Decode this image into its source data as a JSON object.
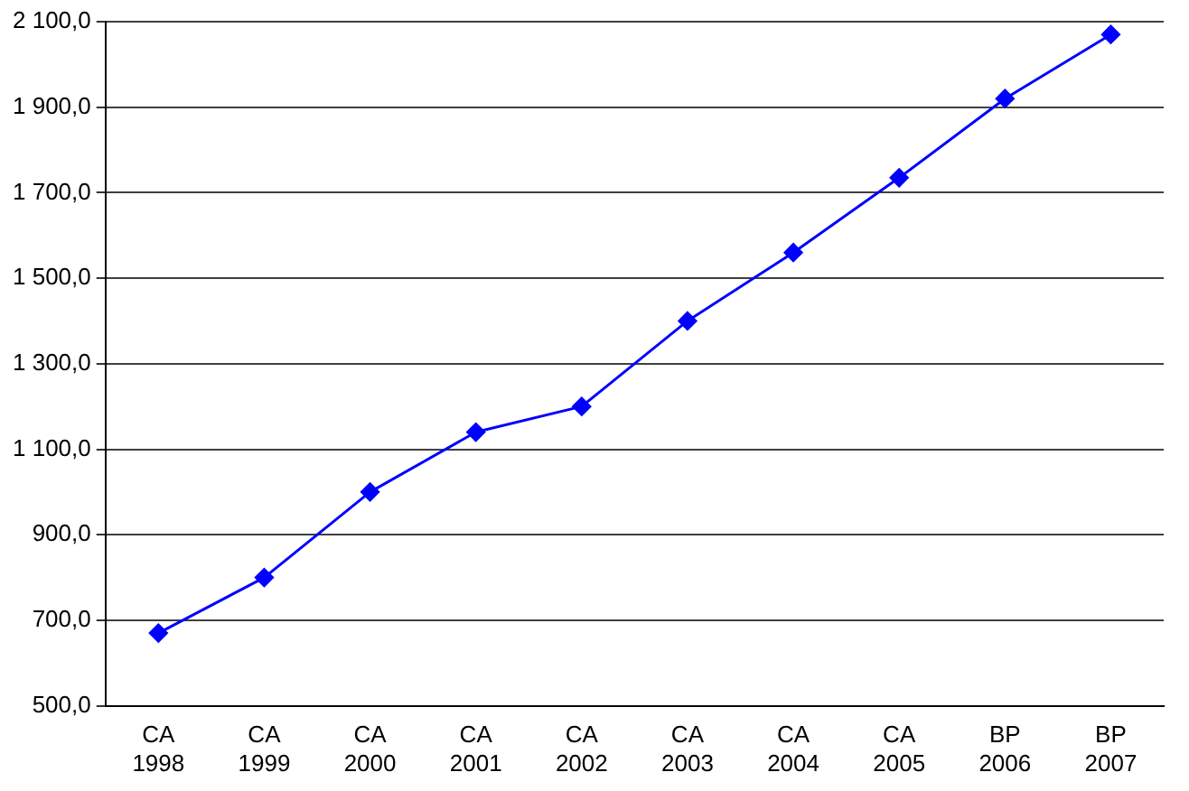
{
  "chart_data": {
    "type": "line",
    "categories": [
      "CA 1998",
      "CA 1999",
      "CA 2000",
      "CA 2001",
      "CA 2002",
      "CA 2003",
      "CA 2004",
      "CA 2005",
      "BP 2006",
      "BP 2007"
    ],
    "series": [
      {
        "color": "#0000ff",
        "values": [
          670,
          800,
          1000,
          1140,
          1200,
          1400,
          1560,
          1735,
          1920,
          2070
        ]
      }
    ],
    "ylim": [
      500,
      2100
    ],
    "yticks": [
      {
        "value": 500,
        "label": "500,0"
      },
      {
        "value": 700,
        "label": "700,0"
      },
      {
        "value": 900,
        "label": "900,0"
      },
      {
        "value": 1100,
        "label": "1 100,0"
      },
      {
        "value": 1300,
        "label": "1 300,0"
      },
      {
        "value": 1500,
        "label": "1 500,0"
      },
      {
        "value": 1700,
        "label": "1 700,0"
      },
      {
        "value": 1900,
        "label": "1 900,0"
      },
      {
        "value": 2100,
        "label": "2 100,0"
      }
    ],
    "grid": "y",
    "legend": false,
    "marker": "diamond",
    "line_style": "solid"
  }
}
